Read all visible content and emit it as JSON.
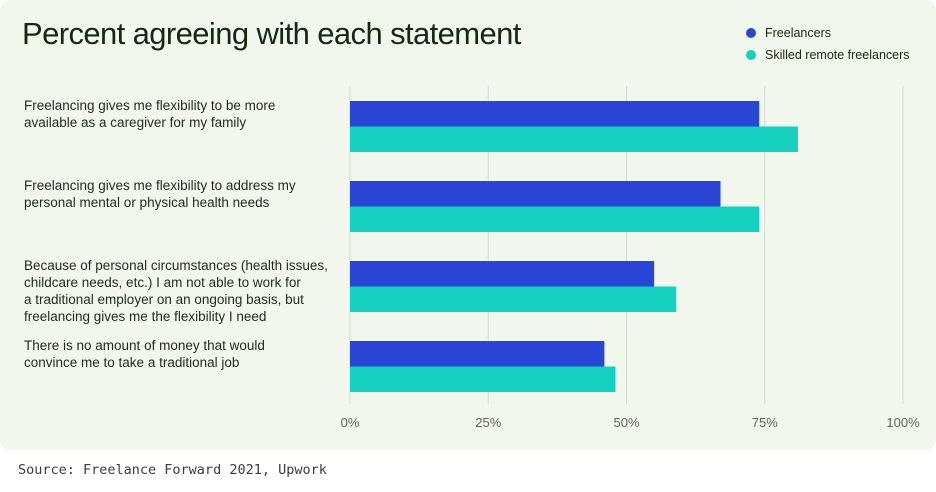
{
  "chart_data": {
    "type": "bar",
    "orientation": "horizontal",
    "title": "Percent agreeing with each statement",
    "categories": [
      "Freelancing gives me flexibility to be more\navailable as a caregiver for my family",
      "Freelancing gives me flexibility to address my\npersonal mental or physical health needs",
      "Because of personal circumstances (health issues,\nchildcare needs, etc.) I am not able to work for\na traditional employer on an ongoing basis, but\nfreelancing gives me the flexibility I need",
      "There is no amount of money that would\nconvince me to take a traditional job"
    ],
    "series": [
      {
        "name": "Freelancers",
        "color": "#2845d6",
        "values": [
          74,
          67,
          55,
          46
        ]
      },
      {
        "name": "Skilled remote freelancers",
        "color": "#14d0be",
        "values": [
          81,
          74,
          59,
          48
        ]
      }
    ],
    "xlim": [
      0,
      100
    ],
    "xticks": [
      0,
      25,
      50,
      75,
      100
    ],
    "xtick_labels": [
      "0%",
      "25%",
      "50%",
      "75%",
      "100%"
    ],
    "legend": "top-right",
    "grid": true
  },
  "source": "Source: Freelance Forward 2021, Upwork"
}
